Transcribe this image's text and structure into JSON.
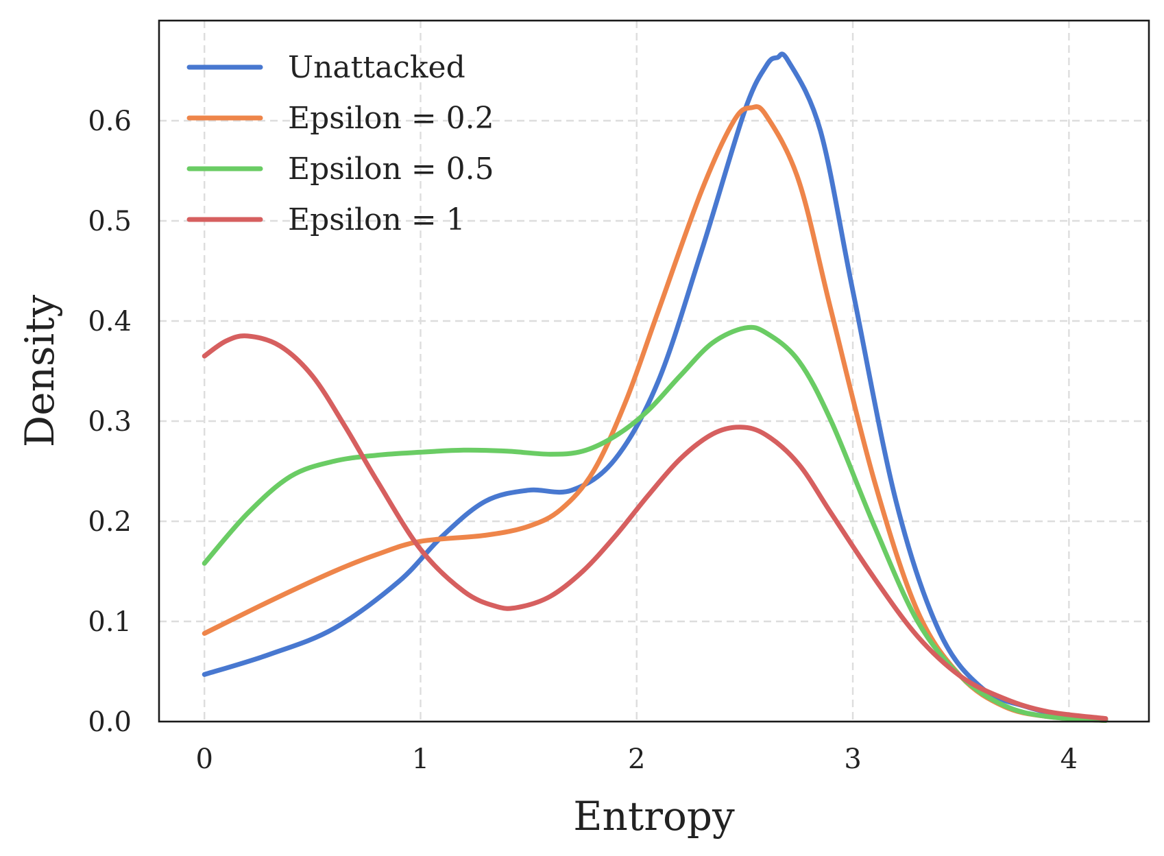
{
  "chart_data": {
    "type": "line",
    "title": "",
    "xlabel": "Entropy",
    "ylabel": "Density",
    "xlim": [
      -0.21,
      4.37
    ],
    "ylim": [
      0.0,
      0.7
    ],
    "xticks": [
      0,
      1,
      2,
      3,
      4
    ],
    "xtick_labels": [
      "0",
      "1",
      "2",
      "3",
      "4"
    ],
    "yticks": [
      0.0,
      0.1,
      0.2,
      0.3,
      0.4,
      0.5,
      0.6
    ],
    "ytick_labels": [
      "0.0",
      "0.1",
      "0.2",
      "0.3",
      "0.4",
      "0.5",
      "0.6"
    ],
    "grid": true,
    "legend_position": "top-left",
    "series": [
      {
        "name": "Unattacked",
        "color": "#4878d0",
        "points": [
          [
            0.0,
            0.047
          ],
          [
            0.3,
            0.067
          ],
          [
            0.6,
            0.093
          ],
          [
            0.9,
            0.14
          ],
          [
            1.1,
            0.185
          ],
          [
            1.3,
            0.22
          ],
          [
            1.5,
            0.231
          ],
          [
            1.7,
            0.231
          ],
          [
            1.9,
            0.262
          ],
          [
            2.1,
            0.34
          ],
          [
            2.3,
            0.47
          ],
          [
            2.5,
            0.61
          ],
          [
            2.6,
            0.655
          ],
          [
            2.65,
            0.663
          ],
          [
            2.7,
            0.66
          ],
          [
            2.85,
            0.59
          ],
          [
            3.0,
            0.43
          ],
          [
            3.2,
            0.22
          ],
          [
            3.4,
            0.09
          ],
          [
            3.6,
            0.033
          ],
          [
            3.8,
            0.015
          ],
          [
            4.0,
            0.005
          ],
          [
            4.17,
            0.002
          ]
        ]
      },
      {
        "name": "Epsilon = 0.2",
        "color": "#ee854a",
        "points": [
          [
            0.0,
            0.088
          ],
          [
            0.3,
            0.12
          ],
          [
            0.6,
            0.15
          ],
          [
            0.8,
            0.167
          ],
          [
            1.0,
            0.18
          ],
          [
            1.3,
            0.186
          ],
          [
            1.5,
            0.195
          ],
          [
            1.65,
            0.212
          ],
          [
            1.8,
            0.25
          ],
          [
            1.95,
            0.32
          ],
          [
            2.1,
            0.41
          ],
          [
            2.3,
            0.53
          ],
          [
            2.45,
            0.6
          ],
          [
            2.53,
            0.613
          ],
          [
            2.6,
            0.605
          ],
          [
            2.75,
            0.54
          ],
          [
            2.9,
            0.41
          ],
          [
            3.1,
            0.24
          ],
          [
            3.3,
            0.11
          ],
          [
            3.5,
            0.045
          ],
          [
            3.7,
            0.015
          ],
          [
            3.9,
            0.005
          ],
          [
            4.17,
            0.001
          ]
        ]
      },
      {
        "name": "Epsilon = 0.5",
        "color": "#6acc64",
        "points": [
          [
            0.0,
            0.158
          ],
          [
            0.2,
            0.208
          ],
          [
            0.4,
            0.245
          ],
          [
            0.6,
            0.26
          ],
          [
            0.8,
            0.266
          ],
          [
            1.0,
            0.269
          ],
          [
            1.2,
            0.271
          ],
          [
            1.4,
            0.27
          ],
          [
            1.6,
            0.267
          ],
          [
            1.75,
            0.27
          ],
          [
            1.9,
            0.285
          ],
          [
            2.05,
            0.31
          ],
          [
            2.2,
            0.345
          ],
          [
            2.35,
            0.378
          ],
          [
            2.5,
            0.393
          ],
          [
            2.6,
            0.388
          ],
          [
            2.75,
            0.36
          ],
          [
            2.9,
            0.3
          ],
          [
            3.1,
            0.195
          ],
          [
            3.3,
            0.1
          ],
          [
            3.5,
            0.045
          ],
          [
            3.7,
            0.016
          ],
          [
            3.9,
            0.005
          ],
          [
            4.17,
            0.001
          ]
        ]
      },
      {
        "name": "Epsilon = 1",
        "color": "#d65f5f",
        "points": [
          [
            0.0,
            0.365
          ],
          [
            0.1,
            0.38
          ],
          [
            0.2,
            0.385
          ],
          [
            0.35,
            0.375
          ],
          [
            0.5,
            0.345
          ],
          [
            0.65,
            0.295
          ],
          [
            0.8,
            0.24
          ],
          [
            1.0,
            0.172
          ],
          [
            1.2,
            0.13
          ],
          [
            1.35,
            0.115
          ],
          [
            1.45,
            0.114
          ],
          [
            1.6,
            0.125
          ],
          [
            1.75,
            0.15
          ],
          [
            1.9,
            0.185
          ],
          [
            2.05,
            0.225
          ],
          [
            2.2,
            0.262
          ],
          [
            2.35,
            0.287
          ],
          [
            2.48,
            0.294
          ],
          [
            2.6,
            0.286
          ],
          [
            2.75,
            0.257
          ],
          [
            2.9,
            0.208
          ],
          [
            3.1,
            0.143
          ],
          [
            3.3,
            0.085
          ],
          [
            3.5,
            0.045
          ],
          [
            3.7,
            0.023
          ],
          [
            3.9,
            0.01
          ],
          [
            4.17,
            0.003
          ]
        ]
      }
    ]
  }
}
